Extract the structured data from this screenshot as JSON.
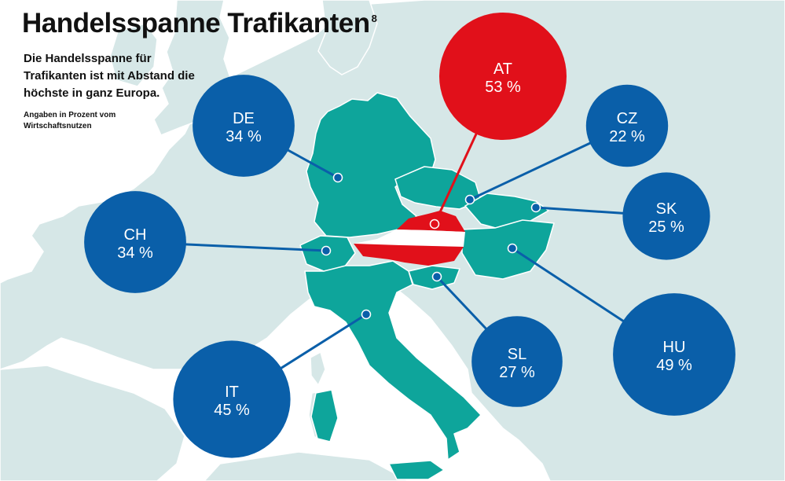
{
  "header": {
    "title": "Handelsspanne Trafikanten",
    "footnote_marker": "8",
    "subtitle": "Die Handelsspanne für Trafikanten ist mit Abstand die höchste in ganz Europa.",
    "note": "Angaben in Prozent vom Wirtschaftsnutzen"
  },
  "colors": {
    "sea": "#ffffff",
    "land": "#d6e7e7",
    "highlight_country": "#0ea59b",
    "bubble": "#0a5fa9",
    "austria_bubble": "#e1101a",
    "austria_flag_red": "#e1101a",
    "austria_flag_white": "#ffffff",
    "connector": "#0a5fa9"
  },
  "chart_data": {
    "type": "bubble-map",
    "unit": "%",
    "highlight": "AT",
    "countries": [
      {
        "code": "AT",
        "value": 53,
        "label": "53 %"
      },
      {
        "code": "DE",
        "value": 34,
        "label": "34 %"
      },
      {
        "code": "CZ",
        "value": 22,
        "label": "22 %"
      },
      {
        "code": "SK",
        "value": 25,
        "label": "25 %"
      },
      {
        "code": "CH",
        "value": 34,
        "label": "34 %"
      },
      {
        "code": "HU",
        "value": 49,
        "label": "49 %"
      },
      {
        "code": "SL",
        "value": 27,
        "label": "27 %"
      },
      {
        "code": "IT",
        "value": 45,
        "label": "45 %"
      }
    ]
  }
}
